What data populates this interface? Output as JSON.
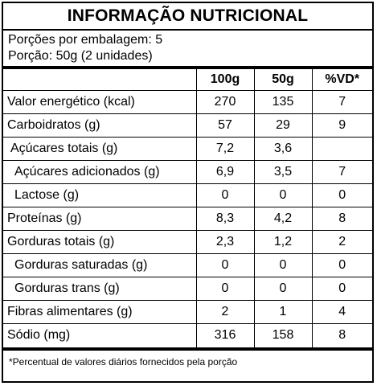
{
  "title": "INFORMAÇÃO NUTRICIONAL",
  "servings": {
    "per_package": "Porções por embalagem: 5",
    "portion": "Porção: 50g (2 unidades)"
  },
  "columns": [
    "100g",
    "50g",
    "%VD*"
  ],
  "rows": [
    {
      "name": "Valor energético (kcal)",
      "v100": "270",
      "v50": "135",
      "vd": "7"
    },
    {
      "name": "Carboidratos (g)",
      "v100": "57",
      "v50": "29",
      "vd": "9"
    },
    {
      "name": "Açúcares totais (g)",
      "v100": "7,2",
      "v50": "3,6",
      "vd": ""
    },
    {
      "name": "Açúcares adicionados (g)",
      "v100": "6,9",
      "v50": "3,5",
      "vd": "7"
    },
    {
      "name": "Lactose (g)",
      "v100": "0",
      "v50": "0",
      "vd": "0"
    },
    {
      "name": "Proteínas (g)",
      "v100": "8,3",
      "v50": "4,2",
      "vd": "8"
    },
    {
      "name": "Gorduras totais (g)",
      "v100": "2,3",
      "v50": "1,2",
      "vd": "2"
    },
    {
      "name": "Gorduras saturadas (g)",
      "v100": "0",
      "v50": "0",
      "vd": "0"
    },
    {
      "name": "Gorduras trans (g)",
      "v100": "0",
      "v50": "0",
      "vd": "0"
    },
    {
      "name": "Fibras alimentares (g)",
      "v100": "2",
      "v50": "1",
      "vd": "4"
    },
    {
      "name": "Sódio (mg)",
      "v100": "316",
      "v50": "158",
      "vd": "8"
    }
  ],
  "footnote": "*Percentual de valores diários fornecidos pela porção"
}
